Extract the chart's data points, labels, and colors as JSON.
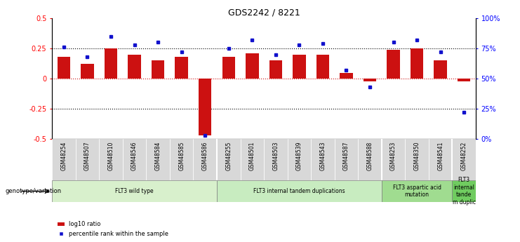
{
  "title": "GDS2242 / 8221",
  "samples": [
    "GSM48254",
    "GSM48507",
    "GSM48510",
    "GSM48546",
    "GSM48584",
    "GSM48585",
    "GSM48586",
    "GSM48255",
    "GSM48501",
    "GSM48503",
    "GSM48539",
    "GSM48543",
    "GSM48587",
    "GSM48588",
    "GSM48253",
    "GSM48350",
    "GSM48541",
    "GSM48252"
  ],
  "log10_ratio": [
    0.18,
    0.12,
    0.25,
    0.2,
    0.15,
    0.18,
    -0.47,
    0.18,
    0.21,
    0.15,
    0.2,
    0.2,
    0.05,
    -0.02,
    0.24,
    0.25,
    0.15,
    -0.02
  ],
  "percentile_rank": [
    76,
    68,
    85,
    78,
    80,
    72,
    3,
    75,
    82,
    70,
    78,
    79,
    57,
    43,
    80,
    82,
    72,
    22
  ],
  "groups": [
    {
      "label": "FLT3 wild type",
      "start": 0,
      "end": 6,
      "color": "#d8f0cc"
    },
    {
      "label": "FLT3 internal tandem duplications",
      "start": 7,
      "end": 13,
      "color": "#c8ecc0"
    },
    {
      "label": "FLT3 aspartic acid\nmutation",
      "start": 14,
      "end": 16,
      "color": "#a0dc90"
    },
    {
      "label": "FLT3\ninternal\ntande\nm duplic",
      "start": 17,
      "end": 17,
      "color": "#70cc60"
    }
  ],
  "bar_color": "#cc1111",
  "dot_color": "#1111cc",
  "ylim_left": [
    -0.5,
    0.5
  ],
  "ylim_right": [
    0,
    100
  ],
  "yticks_left": [
    -0.5,
    -0.25,
    0.0,
    0.25,
    0.5
  ],
  "ytick_right_labels": [
    "0%",
    "25%",
    "50%",
    "75%",
    "100%"
  ],
  "yticks_right": [
    0,
    25,
    50,
    75,
    100
  ],
  "legend_bar_label": "log10 ratio",
  "legend_dot_label": "percentile rank within the sample",
  "genotype_label": "genotype/variation",
  "background_color": "#ffffff",
  "xticklabel_bg": "#d8d8d8",
  "group_separators": [
    6.5,
    13.5,
    16.5
  ]
}
